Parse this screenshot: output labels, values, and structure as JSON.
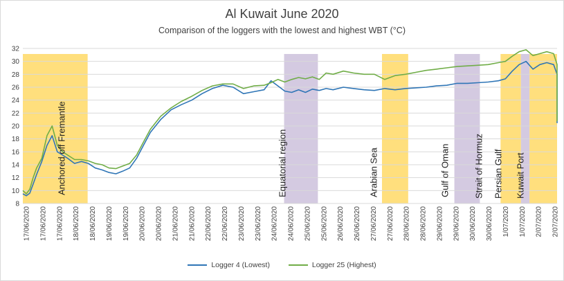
{
  "chart_data": {
    "type": "line",
    "title": "Al Kuwait June 2020",
    "subtitle": "Comparison of the loggers with the lowest and highest WBT (°C)",
    "xlabel": "",
    "ylabel": "",
    "ylim": [
      8,
      32
    ],
    "yticks": [
      8,
      10,
      12,
      14,
      16,
      18,
      20,
      22,
      24,
      26,
      28,
      30,
      32
    ],
    "grid": true,
    "legend_position": "bottom",
    "xtick_labels": [
      "17/06/2020",
      "17/06/2020",
      "17/06/2020",
      "18/06/2020",
      "18/06/2020",
      "19/06/2020",
      "19/06/2020",
      "20/06/2020",
      "20/06/2020",
      "21/06/2020",
      "21/06/2020",
      "22/06/2020",
      "22/06/2020",
      "23/06/2020",
      "23/06/2020",
      "24/06/2020",
      "24/06/2020",
      "25/06/2020",
      "25/06/2020",
      "26/06/2020",
      "26/06/2020",
      "27/06/2020",
      "27/06/2020",
      "28/06/2020",
      "28/06/2020",
      "29/06/2020",
      "29/06/2020",
      "30/06/2020",
      "30/06/2020",
      "1/07/2020",
      "1/07/2020",
      "2/07/2020",
      "2/07/2020"
    ],
    "x_range_days": [
      0,
      15.5
    ],
    "regions": [
      {
        "label": "Anchored off Fremantle",
        "start": 0,
        "end": 1.88,
        "color": "#ffd966"
      },
      {
        "label": "Equatorial region",
        "start": 7.58,
        "end": 8.56,
        "color": "#cdc1dc"
      },
      {
        "label": "Arabian Sea",
        "start": 10.42,
        "end": 11.18,
        "color": "#ffd966"
      },
      {
        "label": "Gulf of Oman",
        "start": 12.52,
        "end": 13.26,
        "color": "#cdc1dc"
      },
      {
        "label": "Strait of Hormuz",
        "start": 13.86,
        "end": 14.45,
        "color": "#ffd966"
      },
      {
        "label": "Persian Gulf",
        "start": 14.45,
        "end": 14.7,
        "color": "#cdc1dc"
      },
      {
        "label": "Kuwait Port",
        "start": 14.7,
        "end": 16.45,
        "color": "#ffd966"
      }
    ],
    "series": [
      {
        "name": "Logger 4 (Lowest)",
        "color": "#2e75b6",
        "x": [
          0,
          0.1,
          0.2,
          0.3,
          0.4,
          0.55,
          0.7,
          0.85,
          1,
          1.15,
          1.3,
          1.5,
          1.7,
          1.9,
          2.1,
          2.3,
          2.5,
          2.7,
          2.9,
          3.1,
          3.3,
          3.5,
          3.7,
          4,
          4.3,
          4.6,
          4.9,
          5.2,
          5.5,
          5.8,
          6.1,
          6.4,
          6.7,
          7,
          7.2,
          7.4,
          7.6,
          7.8,
          8,
          8.2,
          8.4,
          8.6,
          8.8,
          9,
          9.3,
          9.6,
          9.9,
          10.2,
          10.5,
          10.8,
          11.1,
          11.4,
          11.7,
          12,
          12.3,
          12.6,
          12.9,
          13.2,
          13.5,
          13.8,
          14,
          14.2,
          14.4,
          14.6,
          14.8,
          15,
          15.2,
          15.4,
          15.6,
          15.8,
          16,
          16.2,
          16.4,
          16.5
        ],
        "y": [
          9.5,
          9.2,
          9.6,
          11,
          12.5,
          14.5,
          17,
          18.5,
          16,
          15.5,
          15,
          14.2,
          14.5,
          14.2,
          13.5,
          13.2,
          12.8,
          12.6,
          13,
          13.5,
          15,
          17,
          19,
          21,
          22.5,
          23.3,
          24,
          25,
          25.8,
          26.3,
          26,
          25,
          25.3,
          25.6,
          27,
          26.2,
          25.4,
          25.2,
          25.6,
          25.2,
          25.7,
          25.5,
          25.8,
          25.6,
          26,
          25.8,
          25.6,
          25.5,
          25.8,
          25.6,
          25.8,
          25.9,
          26,
          26.2,
          26.3,
          26.6,
          26.6,
          26.7,
          26.8,
          27,
          27.3,
          28.5,
          29.5,
          30,
          28.8,
          29.5,
          29.8,
          29.5,
          28,
          25,
          22,
          20.5,
          21.5,
          23.5
        ]
      },
      {
        "name": "Logger 25 (Highest)",
        "color": "#70ad47",
        "x": [
          0,
          0.1,
          0.2,
          0.3,
          0.4,
          0.55,
          0.7,
          0.85,
          1,
          1.15,
          1.3,
          1.5,
          1.7,
          1.9,
          2.1,
          2.3,
          2.5,
          2.7,
          2.9,
          3.1,
          3.3,
          3.5,
          3.7,
          4,
          4.3,
          4.6,
          4.9,
          5.2,
          5.5,
          5.8,
          6.1,
          6.4,
          6.7,
          7,
          7.2,
          7.4,
          7.6,
          7.8,
          8,
          8.2,
          8.4,
          8.6,
          8.8,
          9,
          9.3,
          9.6,
          9.9,
          10.2,
          10.5,
          10.8,
          11.1,
          11.4,
          11.7,
          12,
          12.3,
          12.6,
          12.9,
          13.2,
          13.5,
          13.8,
          14,
          14.2,
          14.4,
          14.6,
          14.8,
          15,
          15.2,
          15.4,
          15.6,
          15.8,
          16,
          16.2,
          16.4,
          16.5
        ],
        "y": [
          10,
          9.5,
          10.2,
          12,
          13.5,
          15,
          18.5,
          20,
          17,
          16,
          15.5,
          14.8,
          14.8,
          14.6,
          14.2,
          14,
          13.5,
          13.4,
          13.8,
          14.2,
          15.5,
          17.5,
          19.5,
          21.5,
          22.8,
          23.8,
          24.6,
          25.5,
          26.2,
          26.5,
          26.5,
          25.8,
          26.2,
          26.3,
          26.7,
          27.2,
          26.8,
          27.2,
          27.5,
          27.3,
          27.6,
          27.2,
          28.2,
          28,
          28.5,
          28.2,
          28,
          28,
          27.2,
          27.8,
          28,
          28.3,
          28.6,
          28.8,
          29,
          29.2,
          29.3,
          29.4,
          29.5,
          29.8,
          30,
          30.8,
          31.5,
          31.8,
          30.9,
          31.2,
          31.5,
          31.2,
          29.5,
          26,
          22,
          20.8,
          22,
          26.5
        ]
      }
    ]
  }
}
